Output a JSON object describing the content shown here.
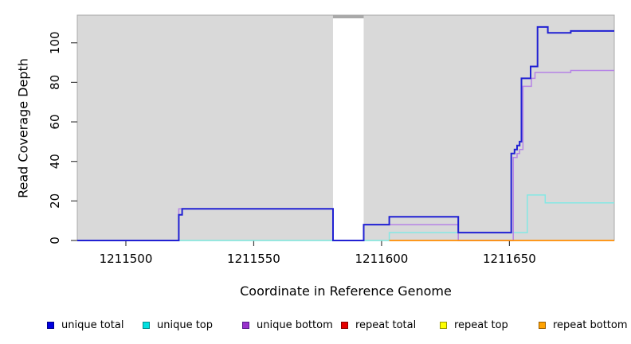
{
  "chart_data": {
    "type": "line",
    "title": "",
    "xlabel": "Coordinate in Reference Genome",
    "ylabel": "Read Coverage Depth",
    "xlim": [
      1211481,
      1211691
    ],
    "ylim": [
      0,
      114
    ],
    "grid": false,
    "legend_position": "bottom",
    "plot_background": "#d9d9d9",
    "plot_border_color": "#a8a8a8",
    "tick_color": "#404040",
    "x_tick_values": [
      1211500,
      1211550,
      1211600,
      1211650
    ],
    "x_tick_labels": [
      "1211500",
      "1211550",
      "1211600",
      "1211650"
    ],
    "y_tick_values": [
      0,
      20,
      40,
      60,
      80,
      100
    ],
    "y_tick_labels": [
      "0",
      "20",
      "40",
      "60",
      "80",
      "100"
    ],
    "gap_region": {
      "x_start": 1211581,
      "x_end": 1211593,
      "fill": "#ffffff",
      "cap_color": "#a9a9a9"
    },
    "series": [
      {
        "name": "green baseline (no legend entry)",
        "color": "#7ccd7c",
        "width": 1.3,
        "points": [
          [
            1211520.7,
            0
          ],
          [
            1211603,
            0
          ]
        ]
      },
      {
        "name": "unique top",
        "color": "#84e8e4",
        "width": 1.5,
        "points": [
          [
            1211481,
            0
          ],
          [
            1211603,
            0
          ],
          [
            1211603,
            4
          ],
          [
            1211657,
            4
          ],
          [
            1211657,
            23
          ],
          [
            1211664,
            23
          ],
          [
            1211664,
            19
          ],
          [
            1211691,
            19
          ]
        ]
      },
      {
        "name": "unique bottom",
        "color": "#b583e6",
        "width": 1.5,
        "points": [
          [
            1211481,
            0
          ],
          [
            1211520.7,
            0
          ],
          [
            1211520.7,
            16
          ],
          [
            1211581,
            16
          ],
          [
            1211581,
            0
          ],
          [
            1211593,
            0
          ],
          [
            1211593,
            8
          ],
          [
            1211630,
            8
          ],
          [
            1211630,
            0
          ],
          [
            1211651.5,
            0
          ],
          [
            1211651.5,
            42
          ],
          [
            1211653,
            42
          ],
          [
            1211653,
            44
          ],
          [
            1211654,
            44
          ],
          [
            1211654,
            46
          ],
          [
            1211655.3,
            46
          ],
          [
            1211655.3,
            78
          ],
          [
            1211658.6,
            78
          ],
          [
            1211658.6,
            82
          ],
          [
            1211660,
            82
          ],
          [
            1211660,
            85
          ],
          [
            1211674,
            85
          ],
          [
            1211674,
            86
          ],
          [
            1211691,
            86
          ]
        ]
      },
      {
        "name": "unique total",
        "color": "#2121d3",
        "width": 2,
        "points": [
          [
            1211481,
            0
          ],
          [
            1211520.7,
            0
          ],
          [
            1211520.7,
            13
          ],
          [
            1211522,
            13
          ],
          [
            1211522,
            16
          ],
          [
            1211581,
            16
          ],
          [
            1211581,
            0
          ],
          [
            1211593,
            0
          ],
          [
            1211593,
            8
          ],
          [
            1211603,
            8
          ],
          [
            1211603,
            12
          ],
          [
            1211630,
            12
          ],
          [
            1211630,
            4
          ],
          [
            1211650.7,
            4
          ],
          [
            1211650.7,
            44
          ],
          [
            1211652,
            44
          ],
          [
            1211652,
            46
          ],
          [
            1211653,
            46
          ],
          [
            1211653,
            48
          ],
          [
            1211654,
            48
          ],
          [
            1211654,
            50
          ],
          [
            1211654.7,
            50
          ],
          [
            1211654.7,
            82
          ],
          [
            1211658.3,
            82
          ],
          [
            1211658.3,
            88
          ],
          [
            1211661,
            88
          ],
          [
            1211661,
            108
          ],
          [
            1211665,
            108
          ],
          [
            1211665,
            105
          ],
          [
            1211674,
            105
          ],
          [
            1211674,
            106
          ],
          [
            1211691,
            106
          ]
        ]
      },
      {
        "name": "repeat bottom",
        "color": "#ff8c00",
        "width": 1.8,
        "points": [
          [
            1211603,
            0
          ],
          [
            1211691,
            0
          ]
        ]
      }
    ],
    "legend": [
      {
        "label": "unique total",
        "fill": "#0000e0",
        "border": "#00008b"
      },
      {
        "label": "unique top",
        "fill": "#00e0e0",
        "border": "#008b8b"
      },
      {
        "label": "unique bottom",
        "fill": "#9932cc",
        "border": "#551a8b"
      },
      {
        "label": "repeat total",
        "fill": "#e60000",
        "border": "#8b0000"
      },
      {
        "label": "repeat top",
        "fill": "#ffff00",
        "border": "#999900"
      },
      {
        "label": "repeat bottom",
        "fill": "#ffa200",
        "border": "#995c00"
      }
    ]
  }
}
